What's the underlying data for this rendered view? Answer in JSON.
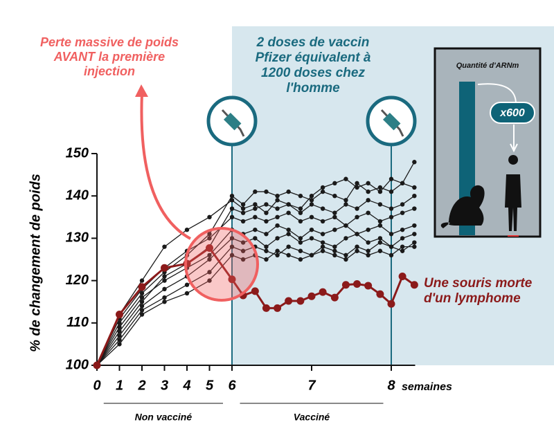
{
  "chart_data": {
    "type": "line",
    "ylabel": "% de changement de poids",
    "xlabel": "semaines",
    "x": [
      0,
      1,
      2,
      3,
      4,
      5,
      6,
      6.14,
      6.29,
      6.43,
      6.57,
      6.71,
      6.86,
      7,
      7.14,
      7.29,
      7.43,
      7.57,
      7.71,
      7.86,
      8,
      8.14,
      8.29
    ],
    "xlim": [
      0,
      8.3
    ],
    "xticks": [
      0,
      1,
      2,
      3,
      4,
      5,
      6,
      7,
      8
    ],
    "ylim": [
      100,
      150
    ],
    "yticks": [
      100,
      110,
      120,
      130,
      140,
      150
    ],
    "vaccine_weeks": [
      6,
      8
    ],
    "periods": [
      {
        "label": "Non vacciné",
        "from": 0.3,
        "to": 5.6
      },
      {
        "label": "Vacciné",
        "from": 6.1,
        "to": 7.9
      }
    ],
    "series": [
      {
        "color": "#1a1a1a",
        "values": [
          100,
          110,
          117,
          122,
          126,
          131,
          140,
          138,
          141,
          141,
          140,
          141,
          140,
          139,
          141,
          140,
          139,
          143,
          141,
          142,
          141,
          143,
          142
        ]
      },
      {
        "color": "#1a1a1a",
        "values": [
          100,
          108,
          115,
          121,
          124,
          128,
          137,
          136,
          137,
          138,
          137,
          138,
          136,
          138,
          137,
          136,
          138,
          137,
          139,
          138,
          137,
          138,
          140
        ]
      },
      {
        "color": "#1a1a1a",
        "values": [
          100,
          111,
          118,
          123,
          127,
          130,
          135,
          134,
          135,
          134,
          135,
          136,
          134,
          135,
          134,
          135,
          133,
          135,
          136,
          134,
          135,
          136,
          137
        ]
      },
      {
        "color": "#1a1a1a",
        "values": [
          100,
          109,
          116,
          120,
          123,
          126,
          132,
          131,
          132,
          131,
          133,
          132,
          130,
          132,
          131,
          132,
          133,
          131,
          132,
          133,
          131,
          132,
          133
        ]
      },
      {
        "color": "#1a1a1a",
        "values": [
          100,
          107,
          114,
          118,
          121,
          125,
          130,
          129,
          130,
          128,
          130,
          131,
          129,
          130,
          129,
          128,
          130,
          131,
          129,
          130,
          128,
          130,
          131
        ]
      },
      {
        "color": "#1a1a1a",
        "values": [
          100,
          106,
          113,
          116,
          119,
          122,
          128,
          127,
          128,
          127,
          126,
          128,
          127,
          126,
          128,
          127,
          126,
          128,
          127,
          129,
          128,
          127,
          129
        ]
      },
      {
        "color": "#1a1a1a",
        "values": [
          100,
          105,
          112,
          115,
          117,
          120,
          126,
          125,
          126,
          125,
          127,
          126,
          125,
          126,
          127,
          126,
          125,
          127,
          126,
          127,
          126,
          128,
          128
        ]
      },
      {
        "color": "#1a1a1a",
        "values": [
          100,
          112,
          120,
          128,
          132,
          135,
          139,
          137,
          138,
          136,
          139,
          138,
          137,
          140,
          142,
          143,
          144,
          142,
          143,
          141,
          144,
          143,
          148
        ]
      },
      {
        "color": "#8b1a1a",
        "values": [
          100,
          112,
          118.5,
          123,
          124,
          127.7,
          120.3,
          116.5,
          117.5,
          113.5,
          113.5,
          115.2,
          115.2,
          116.3,
          117.3,
          116,
          119,
          119.2,
          118.8,
          116.8,
          114.5,
          121,
          119
        ]
      }
    ],
    "annotations": [
      {
        "lines": [
          "Perte massive de poids",
          "AVANT la première",
          "injection"
        ],
        "color": "#f06060"
      },
      {
        "lines": [
          "2 doses de vaccin",
          "Pfizer équivalent à",
          "1200 doses chez",
          "l'homme"
        ],
        "color": "#1a6a7f"
      },
      {
        "lines": [
          "Une souris morte",
          "d'un lymphome"
        ],
        "color": "#8b1a1a"
      }
    ],
    "inset": {
      "title": "Quantité d'ARNm",
      "multiplier": "x600"
    }
  }
}
